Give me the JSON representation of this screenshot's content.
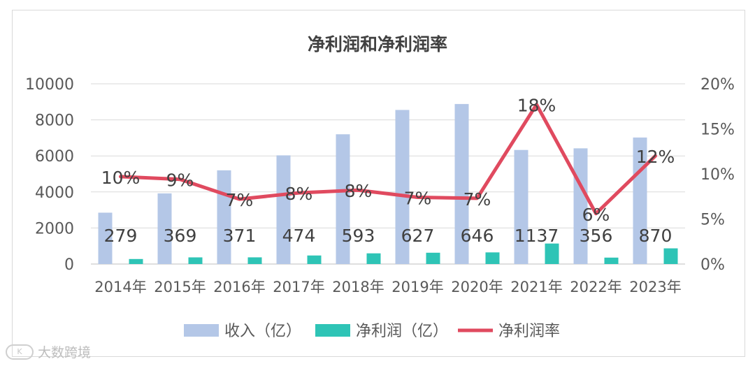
{
  "chart_data": {
    "type": "bar+line",
    "title": "净利润和净利润率",
    "categories": [
      "2014年",
      "2015年",
      "2016年",
      "2017年",
      "2018年",
      "2019年",
      "2020年",
      "2021年",
      "2022年",
      "2023年"
    ],
    "series": [
      {
        "name": "收入（亿）",
        "type": "bar",
        "axis": "left",
        "color": "#b4c7e7",
        "values": [
          2850,
          3920,
          5200,
          6030,
          7200,
          8550,
          8880,
          6330,
          6420,
          7020
        ]
      },
      {
        "name": "净利润（亿）",
        "type": "bar",
        "axis": "left",
        "color": "#2ec4b6",
        "values": [
          279,
          369,
          371,
          474,
          593,
          627,
          646,
          1137,
          356,
          870
        ],
        "labels": [
          "279",
          "369",
          "371",
          "474",
          "593",
          "627",
          "646",
          "1137",
          "356",
          "870"
        ]
      },
      {
        "name": "净利润率",
        "type": "line",
        "axis": "right",
        "color": "#e04a5f",
        "values": [
          0.097,
          0.094,
          0.072,
          0.079,
          0.082,
          0.074,
          0.073,
          0.177,
          0.056,
          0.12
        ],
        "labels": [
          "10%",
          "9%",
          "7%",
          "8%",
          "8%",
          "7%",
          "7%",
          "18%",
          "6%",
          "12%"
        ]
      }
    ],
    "y_left": {
      "ylim": [
        0,
        10000
      ],
      "ticks": [
        "0",
        "2000",
        "4000",
        "6000",
        "8000",
        "10000"
      ]
    },
    "y_right": {
      "ylim": [
        0,
        0.2
      ],
      "ticks": [
        "0%",
        "5%",
        "10%",
        "15%",
        "20%"
      ]
    },
    "grid": true,
    "legend_position": "bottom"
  },
  "watermark": {
    "logo": "K",
    "text": "大数跨境"
  }
}
